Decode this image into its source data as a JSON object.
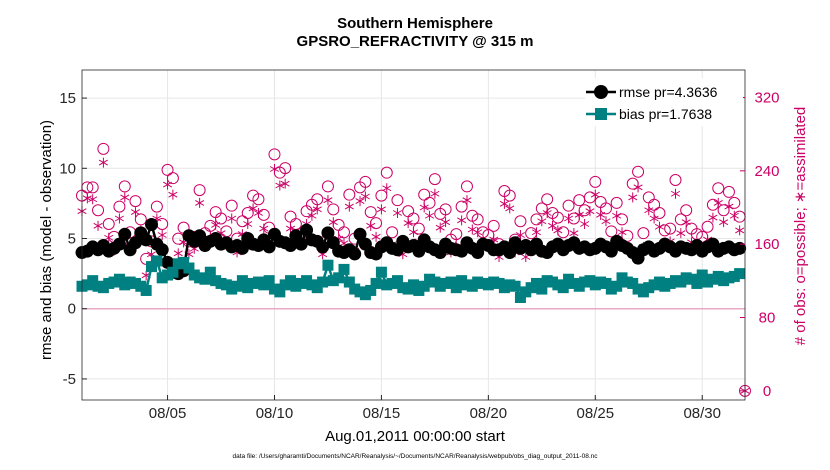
{
  "chart_data": {
    "type": "line",
    "title": "Southern Hemisphere",
    "subtitle": "GPSRO_REFRACTIVITY @ 315 m",
    "xlabel": "Aug.01,2011 00:00:00 start",
    "ylabel": "rmse and bias (model - observation)",
    "ylabel_right": "# of obs: o=possible; ∗=assimilated",
    "xticks": [
      {
        "x": 5,
        "label": "08/05"
      },
      {
        "x": 10,
        "label": "08/10"
      },
      {
        "x": 15,
        "label": "08/15"
      },
      {
        "x": 20,
        "label": "08/20"
      },
      {
        "x": 25,
        "label": "08/25"
      },
      {
        "x": 30,
        "label": "08/30"
      }
    ],
    "yticks": [
      {
        "y": -5,
        "label": "-5"
      },
      {
        "y": 0,
        "label": "0"
      },
      {
        "y": 5,
        "label": "5"
      },
      {
        "y": 10,
        "label": "10"
      },
      {
        "y": 15,
        "label": "15"
      }
    ],
    "yticks_right": [
      {
        "y": 0,
        "label": "0"
      },
      {
        "y": 80,
        "label": "80"
      },
      {
        "y": 160,
        "label": "160"
      },
      {
        "y": 240,
        "label": "240"
      },
      {
        "y": 320,
        "label": "320"
      }
    ],
    "xlim": [
      1,
      32
    ],
    "ylim": [
      -6.5,
      17
    ],
    "ylim_right": [
      -10,
      350
    ],
    "grid": true,
    "legend_position": "top-right",
    "zero_line_color": "#e8a9c4",
    "footnote": "data file: /Users/gharamti/Documents/NCAR/Reanalysis/~/Documents/NCAR/Reanalysis/webpub/obs_diag_output_2011-08.nc",
    "series": [
      {
        "name": "rmse pr=4.3636",
        "axis": "left",
        "color": "#000000",
        "marker": "circle",
        "x": [
          1.0,
          1.25,
          1.5,
          1.75,
          2.0,
          2.25,
          2.5,
          2.75,
          3.0,
          3.25,
          3.5,
          3.75,
          4.0,
          4.25,
          4.5,
          4.75,
          5.0,
          5.25,
          5.5,
          5.75,
          6.0,
          6.25,
          6.5,
          6.75,
          7.0,
          7.25,
          7.5,
          7.75,
          8.0,
          8.25,
          8.5,
          8.75,
          9.0,
          9.25,
          9.5,
          9.75,
          10.0,
          10.25,
          10.5,
          10.75,
          11.0,
          11.25,
          11.5,
          11.75,
          12.0,
          12.25,
          12.5,
          12.75,
          13.0,
          13.25,
          13.5,
          13.75,
          14.0,
          14.25,
          14.5,
          14.75,
          15.0,
          15.25,
          15.5,
          15.75,
          16.0,
          16.25,
          16.5,
          16.75,
          17.0,
          17.25,
          17.5,
          17.75,
          18.0,
          18.25,
          18.5,
          18.75,
          19.0,
          19.25,
          19.5,
          19.75,
          20.0,
          20.25,
          20.5,
          20.75,
          21.0,
          21.25,
          21.5,
          21.75,
          22.0,
          22.25,
          22.5,
          22.75,
          23.0,
          23.25,
          23.5,
          23.75,
          24.0,
          24.25,
          24.5,
          24.75,
          25.0,
          25.25,
          25.5,
          25.75,
          26.0,
          26.25,
          26.5,
          26.75,
          27.0,
          27.25,
          27.5,
          27.75,
          28.0,
          28.25,
          28.5,
          28.75,
          29.0,
          29.25,
          29.5,
          29.75,
          30.0,
          30.25,
          30.5,
          30.75,
          31.0,
          31.25,
          31.5,
          31.75
        ],
        "y": [
          4.0,
          4.1,
          4.4,
          4.2,
          4.5,
          4.1,
          4.3,
          4.6,
          5.3,
          4.2,
          4.7,
          5.4,
          4.9,
          6.0,
          4.6,
          4.2,
          3.3,
          2.6,
          2.5,
          2.7,
          5.2,
          4.8,
          5.2,
          4.5,
          4.8,
          5.0,
          4.6,
          4.7,
          4.4,
          4.5,
          4.3,
          5.0,
          4.6,
          4.5,
          4.9,
          4.4,
          5.3,
          4.8,
          4.7,
          4.5,
          5.2,
          4.6,
          5.6,
          4.9,
          4.8,
          4.4,
          5.4,
          4.7,
          4.1,
          4.0,
          4.2,
          3.9,
          5.3,
          4.6,
          4.0,
          3.9,
          4.4,
          4.7,
          4.3,
          4.2,
          4.8,
          4.4,
          4.5,
          4.1,
          4.9,
          4.4,
          4.2,
          4.0,
          4.6,
          4.3,
          4.2,
          4.1,
          4.7,
          4.3,
          4.0,
          4.6,
          4.5,
          4.2,
          4.2,
          4.4,
          4.0,
          4.7,
          4.3,
          4.5,
          4.2,
          4.6,
          4.1,
          4.0,
          4.4,
          4.6,
          4.2,
          4.5,
          4.7,
          4.3,
          4.4,
          4.2,
          4.3,
          4.6,
          4.4,
          4.1,
          4.8,
          4.5,
          4.3,
          4.0,
          3.6,
          4.2,
          4.4,
          4.1,
          4.3,
          4.6,
          4.4,
          4.1,
          4.4,
          4.3,
          4.2,
          4.5,
          4.1,
          4.4,
          4.6,
          4.1,
          4.3,
          4.4,
          4.2,
          4.3
        ]
      },
      {
        "name": "bias pr=1.7638",
        "axis": "left",
        "color": "#008080",
        "marker": "square",
        "x": [
          1.0,
          1.25,
          1.5,
          1.75,
          2.0,
          2.25,
          2.5,
          2.75,
          3.0,
          3.25,
          3.5,
          3.75,
          4.0,
          4.25,
          4.5,
          4.75,
          5.0,
          5.25,
          5.5,
          5.75,
          6.0,
          6.25,
          6.5,
          6.75,
          7.0,
          7.25,
          7.5,
          7.75,
          8.0,
          8.25,
          8.5,
          8.75,
          9.0,
          9.25,
          9.5,
          9.75,
          10.0,
          10.25,
          10.5,
          10.75,
          11.0,
          11.25,
          11.5,
          11.75,
          12.0,
          12.25,
          12.5,
          12.75,
          13.0,
          13.25,
          13.5,
          13.75,
          14.0,
          14.25,
          14.5,
          14.75,
          15.0,
          15.25,
          15.5,
          15.75,
          16.0,
          16.25,
          16.5,
          16.75,
          17.0,
          17.25,
          17.5,
          17.75,
          18.0,
          18.25,
          18.5,
          18.75,
          19.0,
          19.25,
          19.5,
          19.75,
          20.0,
          20.25,
          20.5,
          20.75,
          21.0,
          21.25,
          21.5,
          21.75,
          22.0,
          22.25,
          22.5,
          22.75,
          23.0,
          23.25,
          23.5,
          23.75,
          24.0,
          24.25,
          24.5,
          24.75,
          25.0,
          25.25,
          25.5,
          25.75,
          26.0,
          26.25,
          26.5,
          26.75,
          27.0,
          27.25,
          27.5,
          27.75,
          28.0,
          28.25,
          28.5,
          28.75,
          29.0,
          29.25,
          29.5,
          29.75,
          30.0,
          30.25,
          30.5,
          30.75,
          31.0,
          31.25,
          31.5,
          31.75
        ],
        "y": [
          1.6,
          1.7,
          2.0,
          1.6,
          1.5,
          1.8,
          1.9,
          2.1,
          1.7,
          1.9,
          1.8,
          1.6,
          1.3,
          3.0,
          3.4,
          2.2,
          2.4,
          2.6,
          3.2,
          3.3,
          2.9,
          2.4,
          2.2,
          2.1,
          2.6,
          2.0,
          1.8,
          1.7,
          1.4,
          1.6,
          2.0,
          1.5,
          1.8,
          1.9,
          1.7,
          2.0,
          1.4,
          1.2,
          1.7,
          2.0,
          1.6,
          1.8,
          2.0,
          1.7,
          1.5,
          1.9,
          3.1,
          2.0,
          2.2,
          2.8,
          1.9,
          1.4,
          1.2,
          1.0,
          1.3,
          1.8,
          2.6,
          1.7,
          1.8,
          2.0,
          1.5,
          1.4,
          1.7,
          1.3,
          1.6,
          2.1,
          1.9,
          1.6,
          1.8,
          1.9,
          1.5,
          2.0,
          1.7,
          1.6,
          1.9,
          1.8,
          1.7,
          1.9,
          1.8,
          1.5,
          1.7,
          1.6,
          0.8,
          1.2,
          1.5,
          1.8,
          1.4,
          2.0,
          1.9,
          1.7,
          1.5,
          2.1,
          1.8,
          1.6,
          1.9,
          2.0,
          1.7,
          1.9,
          1.8,
          1.4,
          1.6,
          2.2,
          1.9,
          1.8,
          1.4,
          1.2,
          1.5,
          1.7,
          1.9,
          1.6,
          1.8,
          2.0,
          1.9,
          2.2,
          2.1,
          1.8,
          2.4,
          1.9,
          2.1,
          2.3,
          2.0,
          2.2,
          2.3,
          2.5
        ]
      },
      {
        "name": "",
        "axis": "right",
        "color": "#cc0066",
        "marker": "open-circle",
        "x": [
          1.0,
          1.25,
          1.5,
          1.75,
          2.0,
          2.25,
          2.5,
          2.75,
          3.0,
          3.25,
          3.5,
          3.75,
          4.0,
          4.25,
          4.5,
          4.75,
          5.0,
          5.25,
          5.5,
          5.75,
          6.0,
          6.25,
          6.5,
          6.75,
          7.0,
          7.25,
          7.5,
          7.75,
          8.0,
          8.25,
          8.5,
          8.75,
          9.0,
          9.25,
          9.5,
          9.75,
          10.0,
          10.25,
          10.5,
          10.75,
          11.0,
          11.25,
          11.5,
          11.75,
          12.0,
          12.25,
          12.5,
          12.75,
          13.0,
          13.25,
          13.5,
          13.75,
          14.0,
          14.25,
          14.5,
          14.75,
          15.0,
          15.25,
          15.5,
          15.75,
          16.0,
          16.25,
          16.5,
          16.75,
          17.0,
          17.25,
          17.5,
          17.75,
          18.0,
          18.25,
          18.5,
          18.75,
          19.0,
          19.25,
          19.5,
          19.75,
          20.0,
          20.25,
          20.5,
          20.75,
          21.0,
          21.25,
          21.5,
          21.75,
          22.0,
          22.25,
          22.5,
          22.75,
          23.0,
          23.25,
          23.5,
          23.75,
          24.0,
          24.25,
          24.5,
          24.75,
          25.0,
          25.25,
          25.5,
          25.75,
          26.0,
          26.25,
          26.5,
          26.75,
          27.0,
          27.25,
          27.5,
          27.75,
          28.0,
          28.25,
          28.5,
          28.75,
          29.0,
          29.25,
          29.5,
          29.75,
          30.0,
          30.25,
          30.5,
          30.75,
          31.0,
          31.25,
          31.5,
          31.75
        ],
        "y": [
          213,
          222,
          222,
          197,
          264,
          182,
          168,
          201,
          223,
          173,
          207,
          187,
          144,
          163,
          201,
          182,
          241,
          232,
          166,
          178,
          163,
          168,
          219,
          172,
          180,
          195,
          188,
          174,
          202,
          166,
          185,
          194,
          213,
          209,
          192,
          178,
          258,
          238,
          243,
          190,
          182,
          171,
          196,
          203,
          209,
          162,
          223,
          198,
          181,
          173,
          214,
          166,
          222,
          228,
          195,
          183,
          213,
          238,
          173,
          208,
          162,
          196,
          188,
          177,
          214,
          205,
          231,
          193,
          198,
          165,
          171,
          201,
          223,
          191,
          187,
          173,
          170,
          180,
          160,
          218,
          213,
          165,
          185,
          159,
          172,
          187,
          199,
          209,
          194,
          189,
          173,
          202,
          188,
          208,
          197,
          211,
          228,
          206,
          199,
          174,
          205,
          187,
          169,
          226,
          239,
          172,
          211,
          203,
          194,
          175,
          177,
          230,
          187,
          197,
          177,
          171,
          168,
          179,
          203,
          221,
          197,
          217,
          205,
          190
        ]
      },
      {
        "name": "",
        "axis": "right",
        "color": "#cc0066",
        "marker": "asterisk",
        "x": [
          1.0,
          1.25,
          1.5,
          1.75,
          2.0,
          2.25,
          2.5,
          2.75,
          3.0,
          3.25,
          3.5,
          3.75,
          4.0,
          4.25,
          4.5,
          4.75,
          5.0,
          5.25,
          5.5,
          5.75,
          6.0,
          6.25,
          6.5,
          6.75,
          7.0,
          7.25,
          7.5,
          7.75,
          8.0,
          8.25,
          8.5,
          8.75,
          9.0,
          9.25,
          9.5,
          9.75,
          10.0,
          10.25,
          10.5,
          10.75,
          11.0,
          11.25,
          11.5,
          11.75,
          12.0,
          12.25,
          12.5,
          12.75,
          13.0,
          13.25,
          13.5,
          13.75,
          14.0,
          14.25,
          14.5,
          14.75,
          15.0,
          15.25,
          15.5,
          15.75,
          16.0,
          16.25,
          16.5,
          16.75,
          17.0,
          17.25,
          17.5,
          17.75,
          18.0,
          18.25,
          18.5,
          18.75,
          19.0,
          19.25,
          19.5,
          19.75,
          20.0,
          20.25,
          20.5,
          20.75,
          21.0,
          21.25,
          21.5,
          21.75,
          22.0,
          22.25,
          22.5,
          22.75,
          23.0,
          23.25,
          23.5,
          23.75,
          24.0,
          24.25,
          24.5,
          24.75,
          25.0,
          25.25,
          25.5,
          25.75,
          26.0,
          26.25,
          26.5,
          26.75,
          27.0,
          27.25,
          27.5,
          27.75,
          28.0,
          28.25,
          28.5,
          28.75,
          29.0,
          29.25,
          29.5,
          29.75,
          30.0,
          30.25,
          30.5,
          30.75,
          31.0,
          31.25,
          31.5,
          31.75
        ],
        "y": [
          196,
          210,
          209,
          180,
          249,
          167,
          153,
          188,
          211,
          158,
          195,
          175,
          126,
          149,
          188,
          170,
          225,
          214,
          150,
          162,
          149,
          155,
          205,
          160,
          166,
          181,
          172,
          161,
          188,
          151,
          171,
          182,
          199,
          194,
          177,
          163,
          242,
          224,
          226,
          177,
          169,
          160,
          182,
          191,
          198,
          149,
          208,
          184,
          166,
          161,
          201,
          153,
          207,
          212,
          180,
          168,
          198,
          221,
          160,
          194,
          149,
          183,
          173,
          163,
          200,
          191,
          215,
          178,
          184,
          151,
          157,
          186,
          208,
          176,
          173,
          160,
          156,
          165,
          146,
          204,
          199,
          151,
          170,
          146,
          157,
          173,
          185,
          194,
          180,
          175,
          159,
          188,
          172,
          192,
          182,
          196,
          214,
          192,
          185,
          160,
          191,
          173,
          155,
          211,
          222,
          157,
          197,
          188,
          179,
          162,
          163,
          215,
          172,
          184,
          162,
          157,
          153,
          165,
          189,
          205,
          184,
          201,
          191,
          175
        ]
      }
    ],
    "legend": [
      {
        "label": "rmse pr=4.3636",
        "color": "#000000",
        "marker": "circle"
      },
      {
        "label": "bias pr=1.7638",
        "color": "#008080",
        "marker": "square"
      }
    ]
  }
}
